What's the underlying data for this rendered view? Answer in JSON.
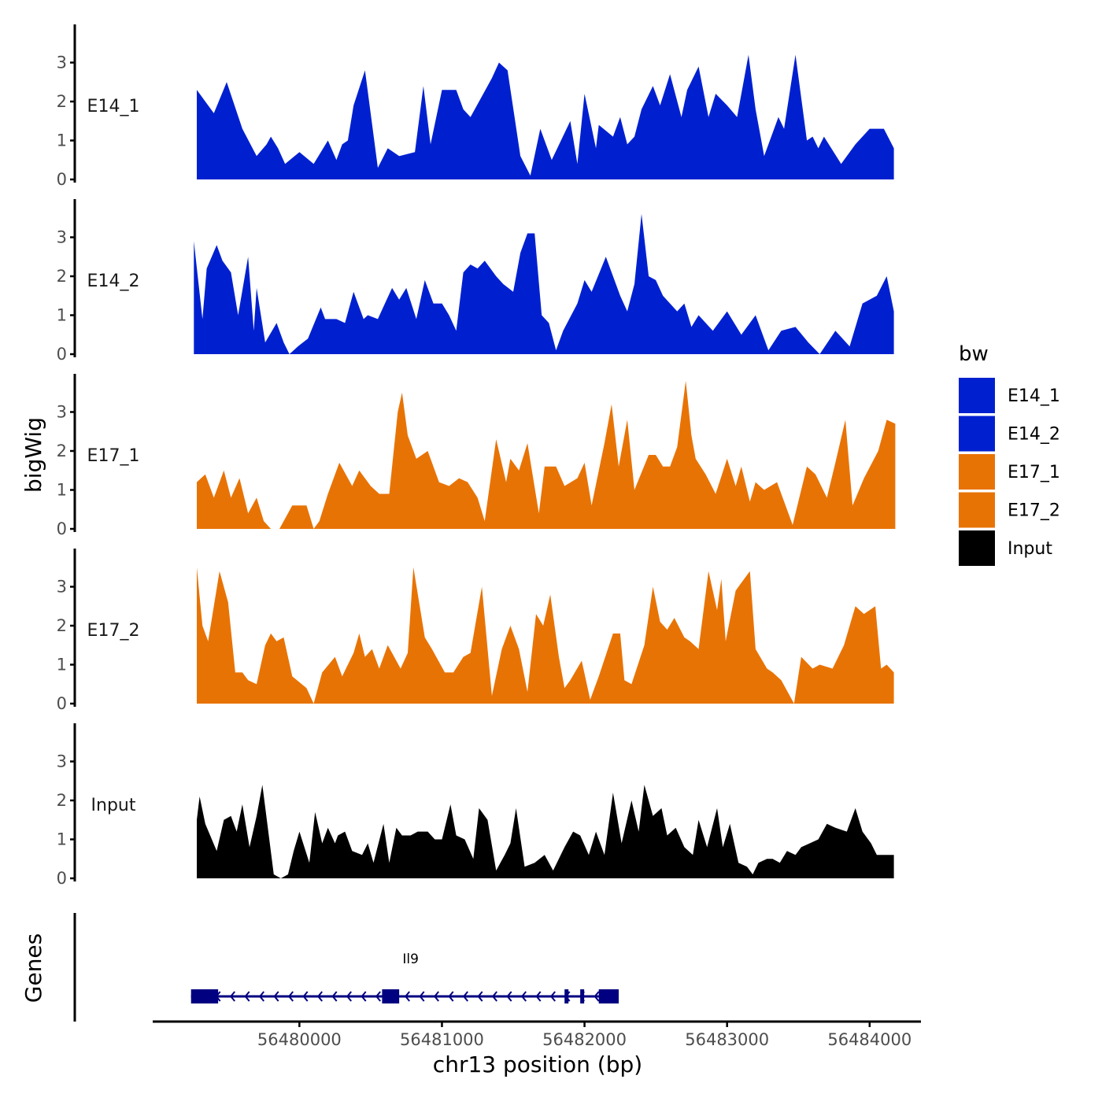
{
  "chart_data": {
    "type": "area",
    "chromosome": "chr13",
    "xlabel": "chr13 position (bp)",
    "ylabel": "bigWig",
    "genes_label": "Genes",
    "xlim": [
      56478960,
      56484360
    ],
    "x_ticks": [
      56480000,
      56481000,
      56482000,
      56483000,
      56484000
    ],
    "x_tick_labels": [
      "56480000",
      "56481000",
      "56482000",
      "56483000",
      "56484000"
    ],
    "ylim": [
      0,
      3.9
    ],
    "y_ticks": [
      0,
      1,
      2,
      3
    ],
    "y_tick_labels": [
      "0",
      "1",
      "2",
      "3"
    ],
    "legend": {
      "title": "bw",
      "entries": [
        {
          "label": "E14_1",
          "color": "#0020d0"
        },
        {
          "label": "E14_2",
          "color": "#0020d0"
        },
        {
          "label": "E17_1",
          "color": "#e87305"
        },
        {
          "label": "E17_2",
          "color": "#e87305"
        },
        {
          "label": "Input",
          "color": "#000000"
        }
      ]
    },
    "series": [
      {
        "name": "E14_1",
        "color": "#0020d0",
        "x": [
          56479280,
          56479400,
          56479490,
          56479600,
          56479700,
          56479770,
          56479800,
          56479850,
          56479900,
          56480000,
          56480100,
          56480200,
          56480260,
          56480300,
          56480340,
          56480380,
          56480460,
          56480550,
          56480620,
          56480700,
          56480810,
          56480870,
          56480920,
          56481000,
          56481100,
          56481150,
          56481200,
          56481350,
          56481400,
          56481460,
          56481550,
          56481620,
          56481690,
          56481770,
          56481900,
          56481950,
          56482000,
          56482080,
          56482100,
          56482200,
          56482250,
          56482300,
          56482350,
          56482400,
          56482480,
          56482530,
          56482600,
          56482680,
          56482720,
          56482800,
          56482870,
          56482920,
          56483000,
          56483070,
          56483150,
          56483200,
          56483260,
          56483360,
          56483400,
          56483480,
          56483560,
          56483600,
          56483640,
          56483680,
          56483800,
          56483900,
          56484000,
          56484100,
          56484170
        ],
        "values": [
          2.3,
          1.7,
          2.5,
          1.3,
          0.6,
          0.9,
          1.1,
          0.8,
          0.4,
          0.7,
          0.4,
          1.0,
          0.5,
          0.9,
          1.0,
          1.9,
          2.8,
          0.3,
          0.8,
          0.6,
          0.7,
          2.4,
          0.9,
          2.3,
          2.3,
          1.8,
          1.6,
          2.6,
          3.0,
          2.8,
          0.6,
          0.1,
          1.3,
          0.5,
          1.5,
          0.4,
          2.2,
          0.8,
          1.4,
          1.1,
          1.6,
          0.9,
          1.1,
          1.8,
          2.4,
          1.9,
          2.7,
          1.6,
          2.3,
          2.9,
          1.6,
          2.2,
          1.9,
          1.6,
          3.2,
          1.8,
          0.6,
          1.6,
          1.3,
          3.2,
          1.0,
          1.1,
          0.8,
          1.1,
          0.4,
          0.9,
          1.3,
          1.3,
          0.8
        ]
      },
      {
        "name": "E14_2",
        "color": "#0020d0",
        "x": [
          56479260,
          56479320,
          56479350,
          56479420,
          56479460,
          56479520,
          56479570,
          56479640,
          56479680,
          56479700,
          56479760,
          56479840,
          56479890,
          56479930,
          56479990,
          56480060,
          56480150,
          56480180,
          56480260,
          56480320,
          56480380,
          56480450,
          56480480,
          56480550,
          56480600,
          56480650,
          56480700,
          56480750,
          56480820,
          56480880,
          56480940,
          56481000,
          56481050,
          56481100,
          56481150,
          56481200,
          56481250,
          56481300,
          56481380,
          56481430,
          56481500,
          56481550,
          56481600,
          56481650,
          56481700,
          56481750,
          56481800,
          56481850,
          56481950,
          56482000,
          56482050,
          56482150,
          56482250,
          56482300,
          56482350,
          56482400,
          56482450,
          56482500,
          56482550,
          56482600,
          56482650,
          56482700,
          56482750,
          56482800,
          56482900,
          56483000,
          56483100,
          56483200,
          56483290,
          56483380,
          56483480,
          56483570,
          56483650,
          56483760,
          56483860,
          56483950,
          56484050,
          56484120,
          56484170
        ],
        "values": [
          2.9,
          0.9,
          2.2,
          2.8,
          2.4,
          2.1,
          1.0,
          2.5,
          0.6,
          1.7,
          0.3,
          0.8,
          0.3,
          0.0,
          0.2,
          0.4,
          1.2,
          0.9,
          0.9,
          0.8,
          1.6,
          0.9,
          1.0,
          0.9,
          1.3,
          1.7,
          1.4,
          1.7,
          0.9,
          1.9,
          1.3,
          1.3,
          1.0,
          0.6,
          2.1,
          2.3,
          2.2,
          2.4,
          2.0,
          1.8,
          1.6,
          2.6,
          3.1,
          3.1,
          1.0,
          0.8,
          0.1,
          0.6,
          1.3,
          1.9,
          1.6,
          2.5,
          1.5,
          1.1,
          1.8,
          3.6,
          2.0,
          1.9,
          1.5,
          1.3,
          1.1,
          1.3,
          0.7,
          1.0,
          0.6,
          1.1,
          0.5,
          1.0,
          0.1,
          0.6,
          0.7,
          0.3,
          0.0,
          0.6,
          0.2,
          1.3,
          1.5,
          2.0,
          1.1
        ]
      },
      {
        "name": "E17_1",
        "color": "#e87305",
        "x": [
          56479280,
          56479340,
          56479400,
          56479470,
          56479520,
          56479580,
          56479640,
          56479700,
          56479750,
          56479800,
          56479860,
          56479950,
          56480050,
          56480100,
          56480140,
          56480200,
          56480280,
          56480370,
          56480420,
          56480500,
          56480560,
          56480630,
          56480690,
          56480720,
          56480760,
          56480820,
          56480860,
          56480900,
          56480980,
          56481050,
          56481120,
          56481180,
          56481250,
          56481300,
          56481380,
          56481450,
          56481480,
          56481540,
          56481600,
          56481680,
          56481720,
          56481800,
          56481860,
          56481950,
          56482000,
          56482050,
          56482140,
          56482190,
          56482240,
          56482300,
          56482350,
          56482450,
          56482500,
          56482550,
          56482600,
          56482650,
          56482710,
          56482750,
          56482780,
          56482850,
          56482920,
          56483000,
          56483060,
          56483100,
          56483160,
          56483200,
          56483260,
          56483350,
          56483460,
          56483560,
          56483620,
          56483700,
          56483760,
          56483830,
          56483880,
          56483960,
          56484060,
          56484120,
          56484180
        ],
        "values": [
          1.2,
          1.4,
          0.8,
          1.5,
          0.8,
          1.3,
          0.4,
          0.8,
          0.2,
          0.0,
          0.0,
          0.6,
          0.6,
          0.0,
          0.2,
          0.9,
          1.7,
          1.1,
          1.5,
          1.1,
          0.9,
          0.9,
          3.0,
          3.5,
          2.4,
          1.8,
          1.9,
          2.0,
          1.2,
          1.1,
          1.3,
          1.2,
          0.8,
          0.2,
          2.3,
          1.2,
          1.8,
          1.5,
          2.2,
          0.4,
          1.6,
          1.6,
          1.1,
          1.3,
          1.7,
          0.6,
          2.2,
          3.2,
          1.6,
          2.8,
          1.0,
          1.9,
          1.9,
          1.6,
          1.6,
          2.1,
          3.8,
          2.4,
          1.8,
          1.4,
          0.9,
          1.8,
          1.1,
          1.6,
          0.7,
          1.2,
          1.0,
          1.2,
          0.1,
          1.6,
          1.4,
          0.8,
          1.7,
          2.8,
          0.6,
          1.3,
          2.0,
          2.8,
          2.7
        ]
      },
      {
        "name": "E17_2",
        "color": "#e87305",
        "x": [
          56479280,
          56479320,
          56479360,
          56479440,
          56479500,
          56479550,
          56479600,
          56479640,
          56479700,
          56479760,
          56479800,
          56479840,
          56479890,
          56479950,
          56480050,
          56480100,
          56480160,
          56480250,
          56480300,
          56480380,
          56480420,
          56480460,
          56480510,
          56480560,
          56480620,
          56480650,
          56480710,
          56480760,
          56480800,
          56480880,
          56480930,
          56481020,
          56481080,
          56481150,
          56481200,
          56481280,
          56481350,
          56481420,
          56481480,
          56481540,
          56481600,
          56481660,
          56481710,
          56481760,
          56481820,
          56481860,
          56481900,
          56481980,
          56482040,
          56482100,
          56482200,
          56482250,
          56482280,
          56482330,
          56482420,
          56482480,
          56482530,
          56482580,
          56482630,
          56482700,
          56482740,
          56482800,
          56482870,
          56482930,
          56482960,
          56482990,
          56483060,
          56483100,
          56483160,
          56483200,
          56483280,
          56483320,
          56483380,
          56483470,
          56483520,
          56483600,
          56483650,
          56483740,
          56483820,
          56483900,
          56483960,
          56484040,
          56484080,
          56484120,
          56484170
        ],
        "values": [
          3.5,
          2.0,
          1.6,
          3.4,
          2.6,
          0.8,
          0.8,
          0.6,
          0.5,
          1.5,
          1.8,
          1.6,
          1.7,
          0.7,
          0.4,
          0.0,
          0.8,
          1.2,
          0.7,
          1.3,
          1.8,
          1.2,
          1.4,
          0.9,
          1.5,
          1.3,
          0.9,
          1.3,
          3.5,
          1.7,
          1.4,
          0.8,
          0.8,
          1.2,
          1.3,
          3.0,
          0.2,
          1.4,
          2.0,
          1.4,
          0.3,
          2.3,
          2.0,
          2.8,
          1.2,
          0.4,
          0.6,
          1.1,
          0.1,
          0.7,
          1.8,
          1.8,
          0.6,
          0.5,
          1.5,
          3.0,
          2.1,
          1.9,
          2.2,
          1.7,
          1.6,
          1.4,
          3.4,
          2.4,
          3.2,
          1.6,
          2.9,
          3.1,
          3.4,
          1.4,
          0.9,
          0.8,
          0.6,
          0.0,
          1.2,
          0.9,
          1.0,
          0.9,
          1.5,
          2.5,
          2.3,
          2.5,
          0.9,
          1.0,
          0.8
        ]
      },
      {
        "name": "Input",
        "color": "#000000",
        "x": [
          56479280,
          56479300,
          56479340,
          56479420,
          56479470,
          56479520,
          56479560,
          56479600,
          56479650,
          56479700,
          56479740,
          56479820,
          56479870,
          56479920,
          56479960,
          56480000,
          56480070,
          56480110,
          56480160,
          56480200,
          56480250,
          56480270,
          56480320,
          56480370,
          56480440,
          56480480,
          56480520,
          56480590,
          56480630,
          56480680,
          56480720,
          56480780,
          56480830,
          56480900,
          56480950,
          56481000,
          56481060,
          56481100,
          56481160,
          56481220,
          56481260,
          56481320,
          56481380,
          56481440,
          56481480,
          56481520,
          56481580,
          56481650,
          56481720,
          56481780,
          56481860,
          56481920,
          56481970,
          56482030,
          56482080,
          56482140,
          56482200,
          56482260,
          56482330,
          56482380,
          56482420,
          56482480,
          56482540,
          56482580,
          56482640,
          56482700,
          56482760,
          56482800,
          56482860,
          56482930,
          56482970,
          56483020,
          56483080,
          56483140,
          56483180,
          56483220,
          56483280,
          56483320,
          56483370,
          56483420,
          56483480,
          56483520,
          56483580,
          56483640,
          56483700,
          56483760,
          56483840,
          56483900,
          56483950,
          56484010,
          56484050,
          56484120,
          56484170
        ],
        "values": [
          1.5,
          2.1,
          1.4,
          0.7,
          1.5,
          1.6,
          1.2,
          1.9,
          0.8,
          1.6,
          2.4,
          0.1,
          0.0,
          0.1,
          0.7,
          1.2,
          0.4,
          1.7,
          0.9,
          1.3,
          0.9,
          1.1,
          1.2,
          0.7,
          0.6,
          0.9,
          0.4,
          1.4,
          0.4,
          1.3,
          1.1,
          1.1,
          1.2,
          1.2,
          1.0,
          1.0,
          1.9,
          1.1,
          1.0,
          0.5,
          1.8,
          1.5,
          0.2,
          0.6,
          0.9,
          1.8,
          0.3,
          0.4,
          0.6,
          0.2,
          0.8,
          1.2,
          1.1,
          0.6,
          1.2,
          0.6,
          2.2,
          0.9,
          2.0,
          1.2,
          2.4,
          1.6,
          1.8,
          1.1,
          1.3,
          0.8,
          0.6,
          1.5,
          0.8,
          1.8,
          0.8,
          1.4,
          0.4,
          0.3,
          0.1,
          0.4,
          0.5,
          0.5,
          0.4,
          0.7,
          0.6,
          0.8,
          0.9,
          1.0,
          1.4,
          1.3,
          1.2,
          1.8,
          1.2,
          0.9,
          0.6,
          0.6,
          0.6
        ]
      }
    ],
    "gene_track": {
      "gene": "Il9",
      "strand": "-",
      "start": 56479240,
      "end": 56482240,
      "exons": [
        [
          56479240,
          56479430
        ],
        [
          56480580,
          56480700
        ],
        [
          56481860,
          56481880
        ],
        [
          56481970,
          56481990
        ],
        [
          56482100,
          56482240
        ]
      ],
      "color": "#000080"
    }
  }
}
